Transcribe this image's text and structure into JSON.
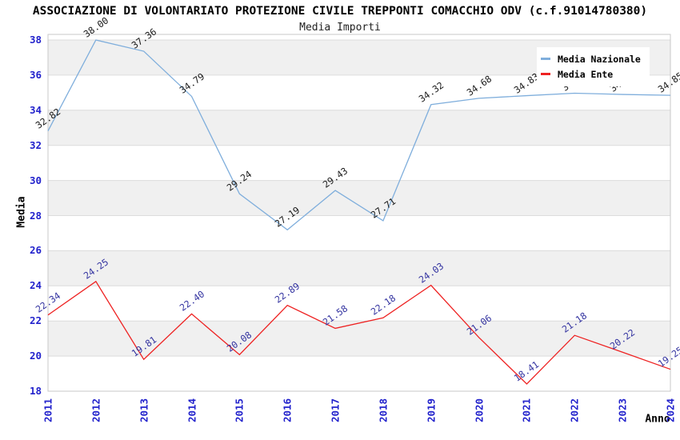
{
  "title": "ASSOCIAZIONE DI VOLONTARIATO PROTEZIONE CIVILE TREPPONTI COMACCHIO ODV (c.f.91014780380)",
  "subtitle": "Media Importi",
  "chart_data": {
    "type": "line",
    "x": [
      2011,
      2012,
      2013,
      2014,
      2015,
      2016,
      2017,
      2018,
      2019,
      2020,
      2021,
      2022,
      2023,
      2024
    ],
    "series": [
      {
        "name": "Media Nazionale",
        "color": "#7FAEDC",
        "label_color": "#1A1A1A",
        "values": [
          32.82,
          38.0,
          37.36,
          34.79,
          29.24,
          27.19,
          29.43,
          27.71,
          34.32,
          34.68,
          34.83,
          34.97,
          34.9,
          34.85
        ]
      },
      {
        "name": "Media Ente",
        "color": "#EE2222",
        "label_color": "#3333A0",
        "values": [
          22.34,
          24.25,
          19.81,
          22.4,
          20.08,
          22.89,
          21.58,
          22.18,
          24.03,
          21.06,
          18.41,
          21.18,
          20.22,
          19.25
        ]
      }
    ],
    "xlabel": "Anno",
    "ylabel": "Media",
    "ylim": [
      18,
      38
    ],
    "ytick_step": 2,
    "grid": true,
    "legend_position": "top-right",
    "tick_label_color": "#2222CC",
    "band_color": "#F0F0F0",
    "grid_color": "#DCDCDC",
    "border_color": "#C8C8C8"
  }
}
